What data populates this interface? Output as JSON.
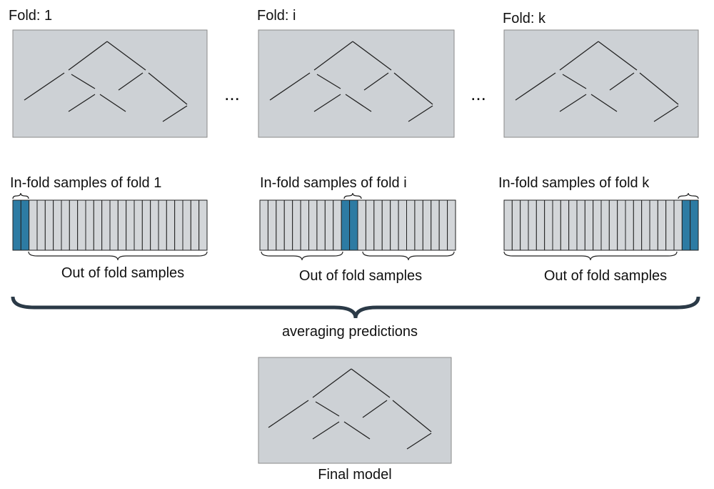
{
  "folds": [
    {
      "title": "Fold: 1",
      "in_fold": "In-fold samples of fold 1",
      "out_of_fold": "Out of fold samples"
    },
    {
      "title": "Fold: i",
      "in_fold": "In-fold samples of fold i",
      "out_of_fold": "Out of fold samples"
    },
    {
      "title": "Fold: k",
      "in_fold": "In-fold samples of fold k",
      "out_of_fold": "Out of fold samples"
    }
  ],
  "ellipses": [
    "...",
    "..."
  ],
  "averaging": "averaging predictions",
  "final_model": "Final model"
}
